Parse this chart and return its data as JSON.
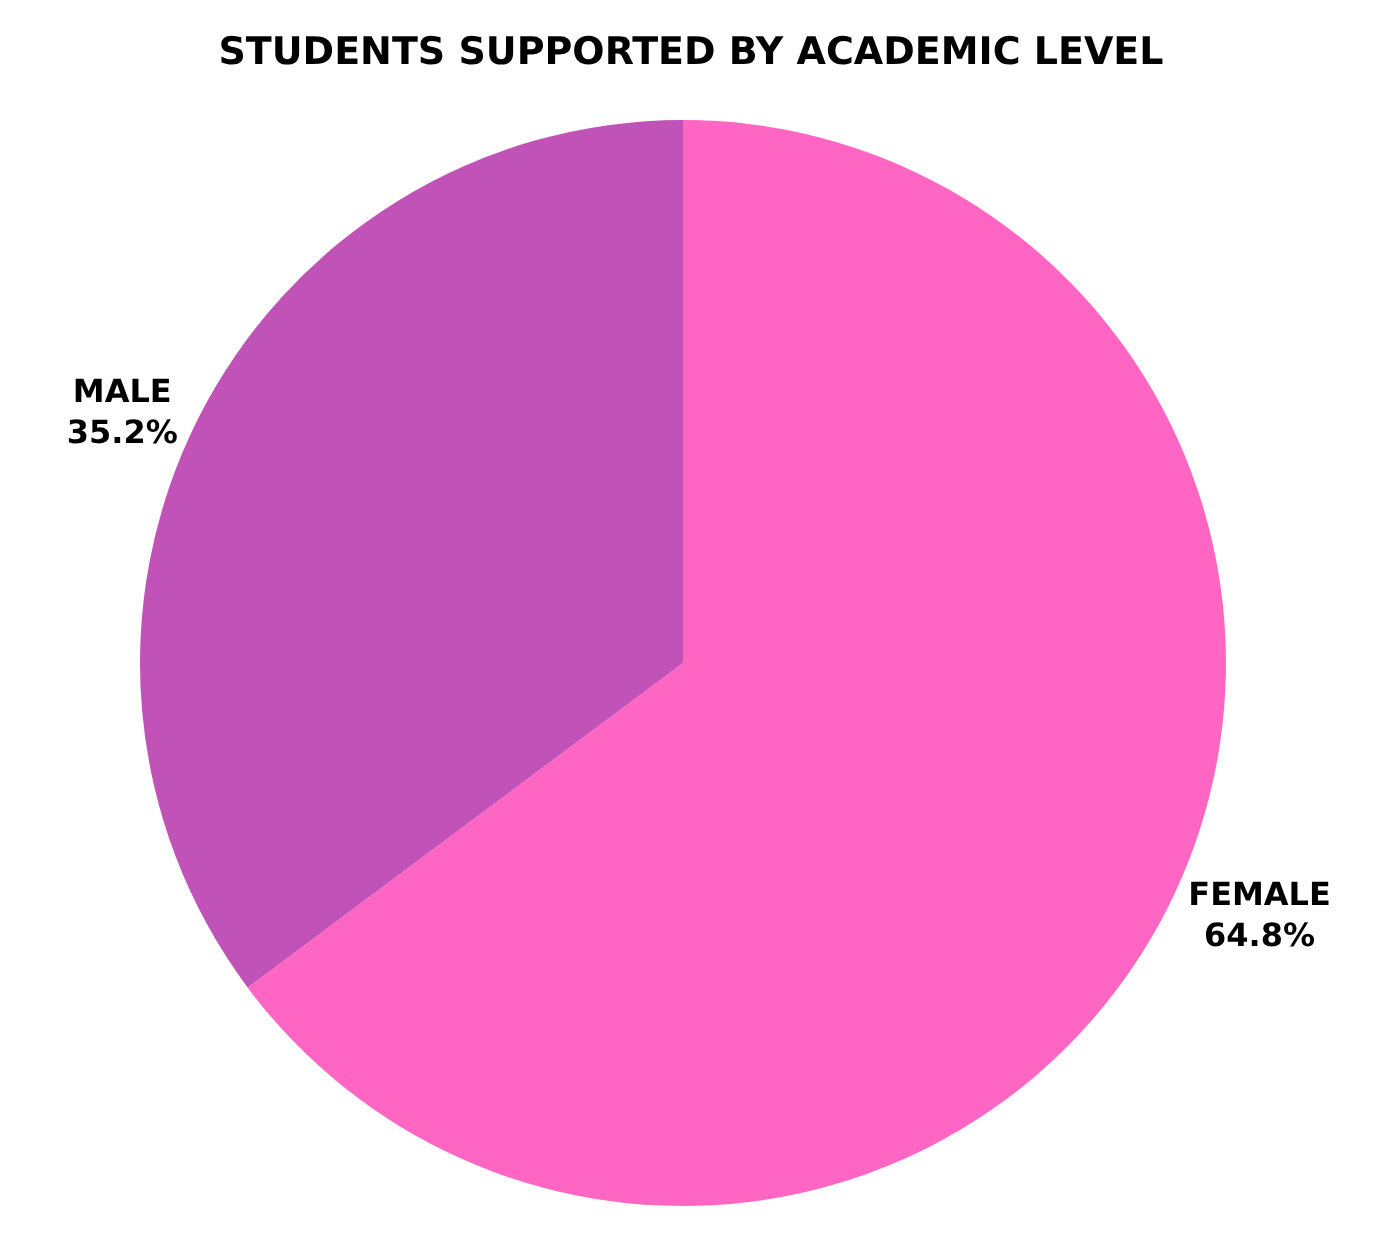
{
  "chart_data": {
    "type": "pie",
    "title": "STUDENTS SUPPORTED BY ACADEMIC LEVEL",
    "categories": [
      "FEMALE",
      "MALE"
    ],
    "values": [
      64.8,
      35.2
    ],
    "colors": [
      "#ff66c4",
      "#c152b8"
    ],
    "value_labels": [
      "64.8%",
      "35.2%"
    ],
    "legend": false
  }
}
